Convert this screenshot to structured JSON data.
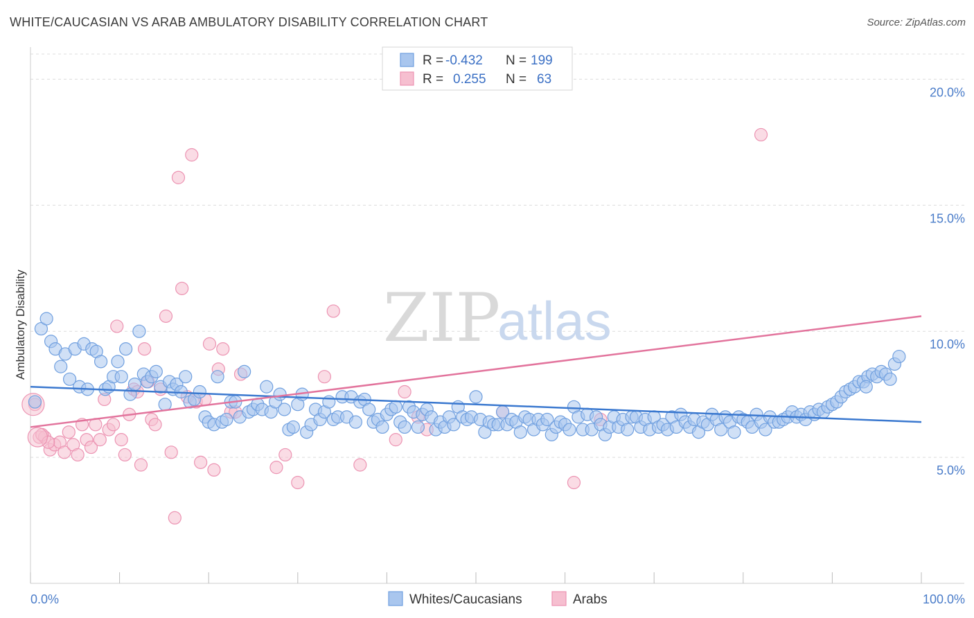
{
  "title": "WHITE/CAUCASIAN VS ARAB AMBULATORY DISABILITY CORRELATION CHART",
  "source": "Source: ZipAtlas.com",
  "watermark": {
    "zip": "ZIP",
    "atlas": "atlas"
  },
  "colors": {
    "blue_fill": "#a9c6ee",
    "blue_stroke": "#6f9fdf",
    "blue_line": "#3a78cf",
    "pink_fill": "#f6bfd0",
    "pink_stroke": "#ec93b2",
    "pink_line": "#e2739c",
    "tick_text": "#4a7cc9",
    "grid": "#dcdcdc"
  },
  "legend": {
    "r_label": "R =",
    "n_label": "N =",
    "rows": [
      {
        "r": "-0.432",
        "n": "199",
        "series": "blue"
      },
      {
        "r": "0.255",
        "n": "63",
        "series": "pink"
      }
    ]
  },
  "chart_data": {
    "type": "scatter",
    "xlabel": "",
    "ylabel": "Ambulatory Disability",
    "xlim": [
      0,
      100
    ],
    "ylim": [
      0,
      21
    ],
    "x_tick_labels": [
      "0.0%",
      "100.0%"
    ],
    "y_ticks": [
      5,
      10,
      15,
      20
    ],
    "y_tick_labels": [
      "5.0%",
      "10.0%",
      "15.0%",
      "20.0%"
    ],
    "grid": "horizontal dashed",
    "legend_position": "top-center",
    "series": [
      {
        "name": "Whites/Caucasians",
        "color": "blue",
        "trend": {
          "x": [
            0,
            100
          ],
          "y": [
            7.8,
            6.4
          ]
        },
        "points": [
          [
            0.5,
            7.2
          ],
          [
            1.2,
            10.1
          ],
          [
            1.8,
            10.5
          ],
          [
            2.3,
            9.6
          ],
          [
            2.8,
            9.3
          ],
          [
            3.4,
            8.6
          ],
          [
            3.9,
            9.1
          ],
          [
            4.4,
            8.1
          ],
          [
            5.0,
            9.3
          ],
          [
            5.5,
            7.8
          ],
          [
            6.0,
            9.5
          ],
          [
            6.4,
            7.7
          ],
          [
            6.9,
            9.3
          ],
          [
            7.4,
            9.2
          ],
          [
            7.9,
            8.8
          ],
          [
            8.4,
            7.7
          ],
          [
            8.8,
            7.8
          ],
          [
            9.3,
            8.2
          ],
          [
            9.8,
            8.8
          ],
          [
            10.2,
            8.2
          ],
          [
            10.7,
            9.3
          ],
          [
            11.2,
            7.5
          ],
          [
            11.7,
            7.9
          ],
          [
            12.2,
            10.0
          ],
          [
            12.7,
            8.3
          ],
          [
            13.1,
            8.0
          ],
          [
            13.6,
            8.2
          ],
          [
            14.1,
            8.4
          ],
          [
            14.6,
            7.8
          ],
          [
            15.1,
            7.1
          ],
          [
            15.6,
            8.0
          ],
          [
            16.0,
            7.7
          ],
          [
            16.4,
            7.9
          ],
          [
            16.9,
            7.6
          ],
          [
            17.4,
            8.2
          ],
          [
            17.9,
            7.2
          ],
          [
            18.4,
            7.3
          ],
          [
            19.0,
            7.6
          ],
          [
            19.6,
            6.6
          ],
          [
            20.0,
            6.4
          ],
          [
            20.6,
            6.3
          ],
          [
            21.0,
            8.2
          ],
          [
            21.5,
            6.4
          ],
          [
            22.0,
            6.5
          ],
          [
            22.5,
            7.2
          ],
          [
            23.0,
            7.2
          ],
          [
            23.5,
            6.6
          ],
          [
            24.0,
            8.4
          ],
          [
            24.5,
            6.8
          ],
          [
            25.0,
            6.9
          ],
          [
            25.5,
            7.1
          ],
          [
            26.0,
            6.9
          ],
          [
            26.5,
            7.8
          ],
          [
            27.0,
            6.8
          ],
          [
            27.5,
            7.2
          ],
          [
            28.0,
            7.5
          ],
          [
            28.5,
            6.9
          ],
          [
            29.0,
            6.1
          ],
          [
            29.5,
            6.2
          ],
          [
            30.0,
            7.1
          ],
          [
            30.5,
            7.5
          ],
          [
            31.0,
            6.0
          ],
          [
            31.5,
            6.3
          ],
          [
            32.0,
            6.9
          ],
          [
            32.5,
            6.5
          ],
          [
            33.0,
            6.8
          ],
          [
            33.5,
            7.2
          ],
          [
            34.0,
            6.5
          ],
          [
            34.5,
            6.6
          ],
          [
            35.0,
            7.4
          ],
          [
            35.5,
            6.6
          ],
          [
            36.0,
            7.4
          ],
          [
            36.5,
            6.4
          ],
          [
            37.0,
            7.2
          ],
          [
            37.5,
            7.3
          ],
          [
            38.0,
            6.9
          ],
          [
            38.5,
            6.4
          ],
          [
            39.0,
            6.5
          ],
          [
            39.5,
            6.2
          ],
          [
            40.0,
            6.7
          ],
          [
            40.5,
            6.9
          ],
          [
            41.0,
            7.0
          ],
          [
            41.5,
            6.4
          ],
          [
            42.0,
            6.2
          ],
          [
            42.5,
            7.0
          ],
          [
            43.0,
            6.8
          ],
          [
            43.5,
            6.2
          ],
          [
            44.0,
            6.7
          ],
          [
            44.5,
            6.9
          ],
          [
            45.0,
            6.6
          ],
          [
            45.5,
            6.1
          ],
          [
            46.0,
            6.4
          ],
          [
            46.5,
            6.2
          ],
          [
            47.0,
            6.6
          ],
          [
            47.5,
            6.3
          ],
          [
            48.0,
            7.0
          ],
          [
            48.5,
            6.6
          ],
          [
            49.0,
            6.5
          ],
          [
            49.5,
            6.6
          ],
          [
            50.0,
            7.4
          ],
          [
            50.5,
            6.5
          ],
          [
            51.0,
            6.0
          ],
          [
            51.5,
            6.4
          ],
          [
            52.0,
            6.3
          ],
          [
            52.5,
            6.3
          ],
          [
            53.0,
            6.8
          ],
          [
            53.5,
            6.3
          ],
          [
            54.0,
            6.5
          ],
          [
            54.5,
            6.4
          ],
          [
            55.0,
            6.0
          ],
          [
            55.5,
            6.6
          ],
          [
            56.0,
            6.5
          ],
          [
            56.5,
            6.1
          ],
          [
            57.0,
            6.5
          ],
          [
            57.5,
            6.3
          ],
          [
            58.0,
            6.5
          ],
          [
            58.5,
            5.9
          ],
          [
            59.0,
            6.2
          ],
          [
            59.5,
            6.4
          ],
          [
            60.0,
            6.3
          ],
          [
            60.5,
            6.1
          ],
          [
            61.0,
            7.0
          ],
          [
            61.5,
            6.6
          ],
          [
            62.0,
            6.1
          ],
          [
            62.5,
            6.7
          ],
          [
            63.0,
            6.1
          ],
          [
            63.5,
            6.6
          ],
          [
            64.0,
            6.3
          ],
          [
            64.5,
            5.9
          ],
          [
            65.0,
            6.2
          ],
          [
            65.5,
            6.6
          ],
          [
            66.0,
            6.2
          ],
          [
            66.5,
            6.5
          ],
          [
            67.0,
            6.1
          ],
          [
            67.5,
            6.6
          ],
          [
            68.0,
            6.6
          ],
          [
            68.5,
            6.2
          ],
          [
            69.0,
            6.5
          ],
          [
            69.5,
            6.1
          ],
          [
            70.0,
            6.6
          ],
          [
            70.5,
            6.2
          ],
          [
            71.0,
            6.3
          ],
          [
            71.5,
            6.1
          ],
          [
            72.0,
            6.6
          ],
          [
            72.5,
            6.2
          ],
          [
            73.0,
            6.7
          ],
          [
            73.5,
            6.4
          ],
          [
            74.0,
            6.2
          ],
          [
            74.5,
            6.5
          ],
          [
            75.0,
            6.0
          ],
          [
            75.5,
            6.4
          ],
          [
            76.0,
            6.3
          ],
          [
            76.5,
            6.7
          ],
          [
            77.0,
            6.5
          ],
          [
            77.5,
            6.1
          ],
          [
            78.0,
            6.6
          ],
          [
            78.5,
            6.4
          ],
          [
            79.0,
            6.0
          ],
          [
            79.5,
            6.6
          ],
          [
            80.0,
            6.5
          ],
          [
            80.5,
            6.4
          ],
          [
            81.0,
            6.2
          ],
          [
            81.5,
            6.7
          ],
          [
            82.0,
            6.4
          ],
          [
            82.5,
            6.1
          ],
          [
            83.0,
            6.6
          ],
          [
            83.5,
            6.4
          ],
          [
            84.0,
            6.4
          ],
          [
            84.5,
            6.5
          ],
          [
            85.0,
            6.6
          ],
          [
            85.5,
            6.8
          ],
          [
            86.0,
            6.6
          ],
          [
            86.5,
            6.7
          ],
          [
            87.0,
            6.5
          ],
          [
            87.5,
            6.8
          ],
          [
            88.0,
            6.7
          ],
          [
            88.5,
            6.9
          ],
          [
            89.0,
            6.8
          ],
          [
            89.5,
            7.0
          ],
          [
            90.0,
            7.1
          ],
          [
            90.5,
            7.2
          ],
          [
            91.0,
            7.4
          ],
          [
            91.5,
            7.6
          ],
          [
            92.0,
            7.7
          ],
          [
            92.5,
            7.8
          ],
          [
            93.0,
            8.0
          ],
          [
            93.5,
            8.0
          ],
          [
            94.0,
            8.2
          ],
          [
            94.5,
            8.3
          ],
          [
            95.0,
            8.2
          ],
          [
            95.5,
            8.4
          ],
          [
            96.0,
            8.3
          ],
          [
            96.5,
            8.1
          ],
          [
            97.0,
            8.7
          ],
          [
            97.5,
            9.0
          ],
          [
            93.8,
            7.8
          ]
        ]
      },
      {
        "name": "Arabs",
        "color": "pink",
        "trend": {
          "x": [
            0,
            100
          ],
          "y": [
            6.2,
            10.6
          ]
        },
        "points": [
          [
            0.5,
            7.1
          ],
          [
            1.0,
            5.8
          ],
          [
            1.6,
            5.8
          ],
          [
            2.2,
            5.3
          ],
          [
            2.7,
            5.5
          ],
          [
            3.3,
            5.6
          ],
          [
            3.8,
            5.2
          ],
          [
            4.3,
            6.0
          ],
          [
            4.8,
            5.5
          ],
          [
            5.3,
            5.1
          ],
          [
            5.8,
            6.3
          ],
          [
            6.3,
            5.7
          ],
          [
            6.8,
            5.4
          ],
          [
            7.3,
            6.3
          ],
          [
            7.8,
            5.7
          ],
          [
            8.3,
            7.3
          ],
          [
            8.8,
            6.1
          ],
          [
            9.3,
            6.3
          ],
          [
            9.7,
            10.2
          ],
          [
            10.2,
            5.7
          ],
          [
            10.6,
            5.1
          ],
          [
            11.1,
            6.7
          ],
          [
            11.6,
            7.7
          ],
          [
            12.0,
            7.6
          ],
          [
            12.4,
            4.7
          ],
          [
            12.8,
            9.3
          ],
          [
            13.2,
            8.0
          ],
          [
            13.6,
            6.5
          ],
          [
            14.0,
            6.3
          ],
          [
            14.6,
            7.7
          ],
          [
            15.2,
            10.6
          ],
          [
            15.8,
            5.2
          ],
          [
            16.2,
            2.6
          ],
          [
            16.6,
            16.1
          ],
          [
            17.0,
            11.7
          ],
          [
            17.6,
            7.4
          ],
          [
            18.1,
            17.0
          ],
          [
            18.6,
            7.2
          ],
          [
            19.1,
            4.8
          ],
          [
            19.6,
            7.3
          ],
          [
            20.1,
            9.5
          ],
          [
            20.6,
            4.5
          ],
          [
            21.1,
            8.5
          ],
          [
            21.6,
            9.3
          ],
          [
            22.5,
            6.8
          ],
          [
            23.0,
            6.8
          ],
          [
            23.6,
            8.3
          ],
          [
            27.6,
            4.6
          ],
          [
            28.6,
            5.1
          ],
          [
            30.0,
            4.0
          ],
          [
            33.0,
            8.2
          ],
          [
            34.0,
            10.8
          ],
          [
            37.0,
            4.7
          ],
          [
            41.0,
            5.7
          ],
          [
            42.0,
            7.6
          ],
          [
            43.5,
            6.6
          ],
          [
            44.5,
            6.1
          ],
          [
            53.0,
            6.8
          ],
          [
            61.0,
            4.0
          ],
          [
            64.0,
            6.5
          ],
          [
            82.0,
            17.8
          ],
          [
            1.3,
            5.9
          ],
          [
            2.0,
            5.6
          ]
        ]
      }
    ]
  }
}
